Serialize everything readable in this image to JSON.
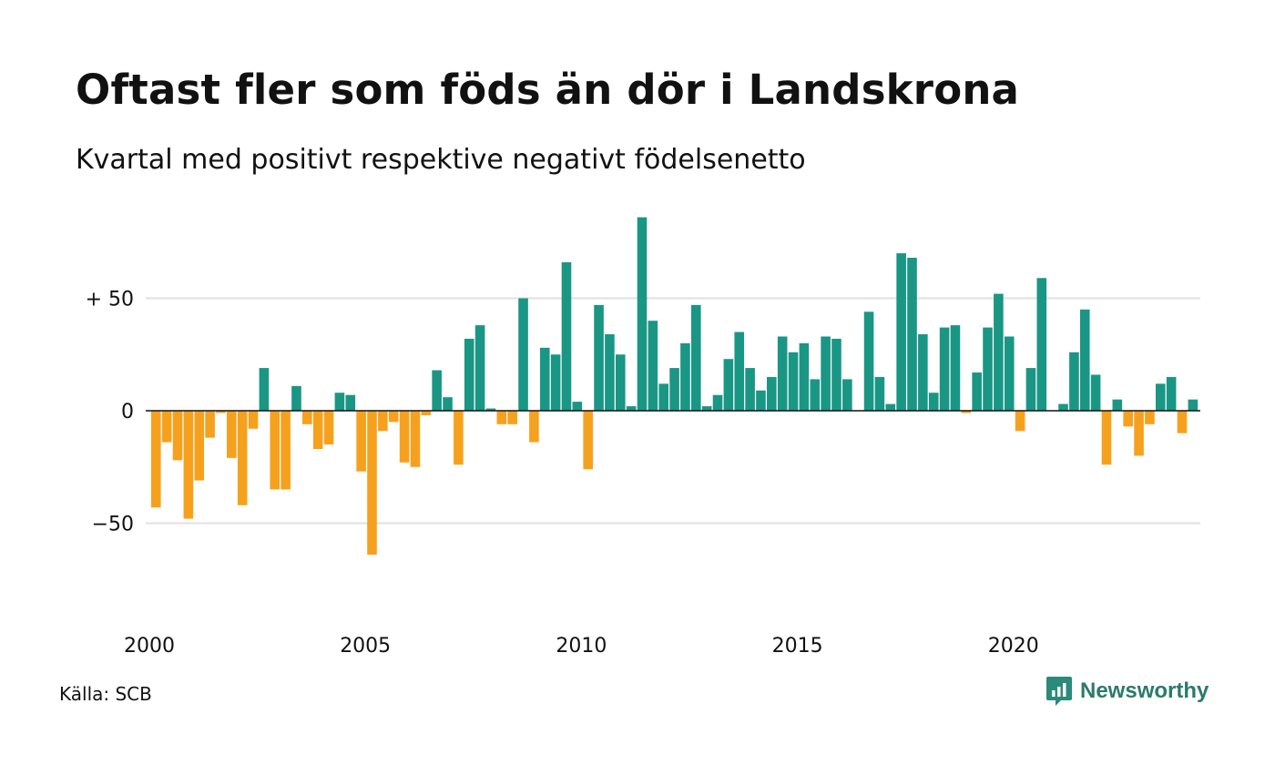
{
  "title": "Oftast fler som föds än dör i Landskrona",
  "subtitle": "Kvartal med positivt respektive negativt födelsenetto",
  "source": "Källa: SCB",
  "brand": {
    "name": "Newsworthy",
    "icon": "newsworthy-logo-icon"
  },
  "colors": {
    "positive": "#1a9685",
    "negative": "#f6a11e",
    "grid": "#e0e0e0",
    "axis": "#111111"
  },
  "chart_data": {
    "type": "bar",
    "title": "Oftast fler som föds än dör i Landskrona",
    "subtitle": "Kvartal med positivt respektive negativt födelsenetto",
    "xlabel": "",
    "ylabel": "",
    "x_start": 2000,
    "periods_per_year": 4,
    "x_ticks": [
      "2000",
      "2005",
      "2010",
      "2015",
      "2020"
    ],
    "y_ticks": [
      {
        "value": 50,
        "label": "+ 50"
      },
      {
        "value": 0,
        "label": "0"
      },
      {
        "value": -50,
        "label": "−50"
      }
    ],
    "ylim": [
      -80,
      90
    ],
    "grid": true,
    "values": [
      -43,
      -14,
      -22,
      -48,
      -31,
      -12,
      -1,
      -21,
      -42,
      -8,
      19,
      -35,
      -35,
      11,
      -6,
      -17,
      -15,
      8,
      7,
      -27,
      -64,
      -9,
      -5,
      -23,
      -25,
      -2,
      18,
      6,
      -24,
      32,
      38,
      1,
      -6,
      -6,
      50,
      -14,
      28,
      25,
      66,
      4,
      -26,
      47,
      34,
      25,
      2,
      86,
      40,
      12,
      19,
      30,
      47,
      2,
      7,
      23,
      35,
      19,
      9,
      15,
      33,
      26,
      30,
      14,
      33,
      32,
      14,
      0,
      44,
      15,
      3,
      70,
      68,
      34,
      8,
      37,
      38,
      -1,
      17,
      37,
      52,
      33,
      -9,
      19,
      59,
      0,
      3,
      26,
      45,
      16,
      -24,
      5,
      -7,
      -20,
      -6,
      12,
      15,
      -10,
      5
    ]
  }
}
